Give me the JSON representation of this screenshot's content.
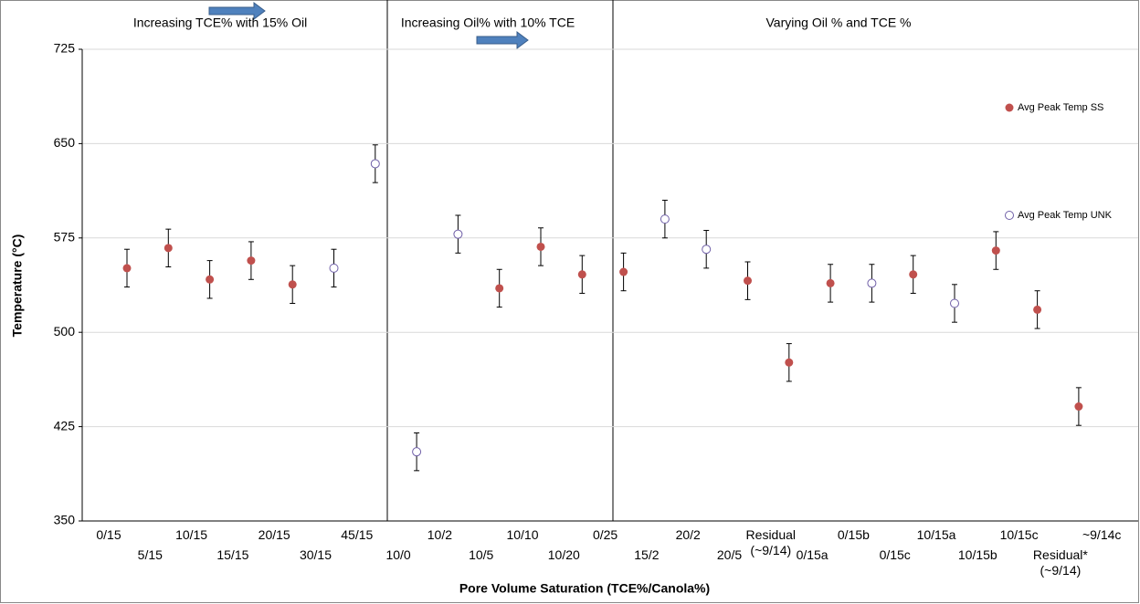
{
  "chart_data": {
    "type": "scatter",
    "y_label": "Temperature (°C)",
    "x_label": "Pore Volume   Saturation  (TCE%/Canola%)",
    "annotations": [
      "Increasing TCE% with  15% Oil",
      "Increasing Oil% with  10% TCE",
      "Varying Oil % and TCE %"
    ],
    "categories": [
      "0/15",
      "5/15",
      "10/15",
      "15/15",
      "20/15",
      "30/15",
      "45/15",
      "10/0",
      "10/2",
      "10/5",
      "10/10",
      "10/20",
      "0/25",
      "15/2",
      "20/2",
      "20/5",
      "Residual (~9/14)",
      "0/15a",
      "0/15b",
      "0/15c",
      "10/15a",
      "10/15b",
      "10/15c",
      "Residual* (~9/14)",
      "~9/14c"
    ],
    "series": [
      {
        "name": "Avg Peak Temp SS",
        "color": "#c0504d",
        "values": [
          551,
          567,
          542,
          557,
          538,
          null,
          null,
          null,
          null,
          535,
          568,
          546,
          548,
          null,
          null,
          541,
          476,
          539,
          null,
          546,
          null,
          565,
          518,
          441,
          null
        ],
        "errors": [
          15,
          15,
          15,
          15,
          15,
          null,
          null,
          null,
          null,
          15,
          15,
          15,
          15,
          null,
          null,
          15,
          15,
          15,
          null,
          15,
          null,
          15,
          15,
          15,
          null
        ]
      },
      {
        "name": "Avg Peak Temp UNK",
        "color": "#7060a8",
        "values": [
          null,
          null,
          null,
          null,
          null,
          551,
          634,
          405,
          578,
          null,
          null,
          null,
          null,
          590,
          566,
          null,
          null,
          null,
          539,
          null,
          523,
          null,
          null,
          null,
          null
        ],
        "errors": [
          null,
          null,
          null,
          null,
          null,
          15,
          15,
          15,
          15,
          null,
          null,
          null,
          null,
          15,
          15,
          null,
          null,
          null,
          15,
          null,
          15,
          null,
          null,
          null,
          null
        ]
      }
    ],
    "ylim": [
      350,
      725
    ],
    "yticks": [
      350,
      425,
      500,
      575,
      650,
      725
    ],
    "grid": true,
    "legend": "right"
  }
}
